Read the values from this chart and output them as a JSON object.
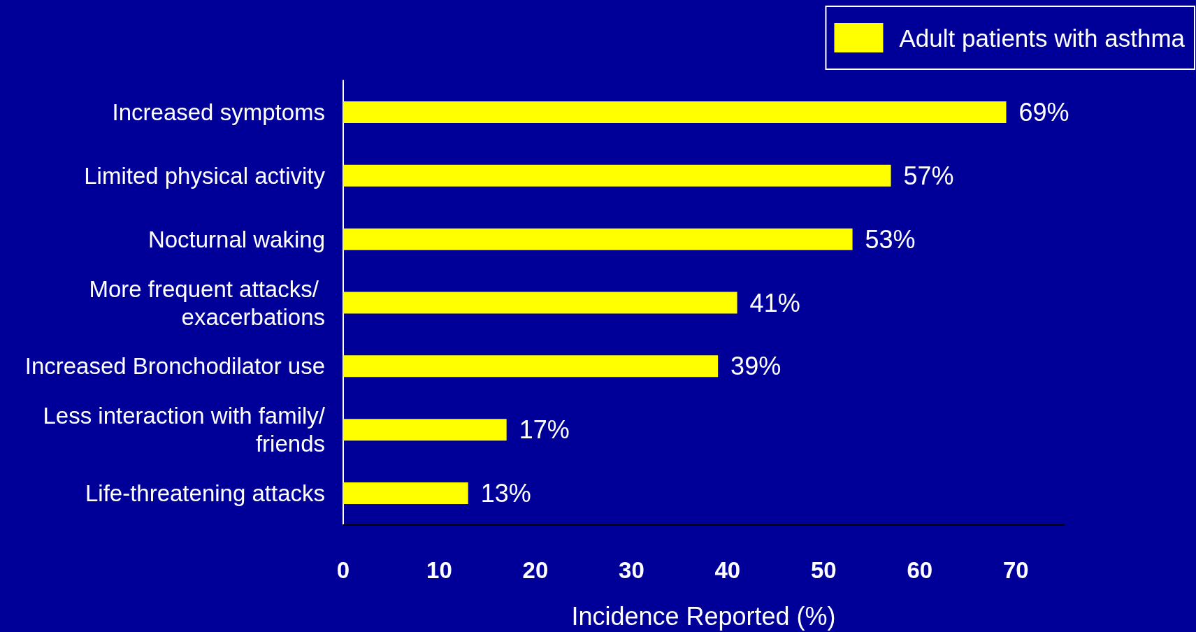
{
  "chart_data": {
    "type": "bar",
    "orientation": "horizontal",
    "xlabel": "Incidence Reported (%)",
    "categories": [
      "Increased symptoms",
      "Limited physical activity",
      "Nocturnal waking",
      "More frequent attacks/ exacerbations",
      "Increased Bronchodilator use",
      "Less interaction with family/friends",
      "Life-threatening attacks"
    ],
    "series": [
      {
        "name": "Adult patients with asthma",
        "color": "#ffff00",
        "values": [
          69,
          57,
          53,
          41,
          39,
          17,
          13
        ],
        "value_labels": [
          "69%",
          "57%",
          "53%",
          "41%",
          "39%",
          "17%",
          "13%"
        ]
      }
    ],
    "xlim": [
      0,
      75
    ],
    "xticks": [
      0,
      10,
      20,
      30,
      40,
      50,
      60,
      70
    ],
    "grid": false,
    "legend": "top right"
  }
}
